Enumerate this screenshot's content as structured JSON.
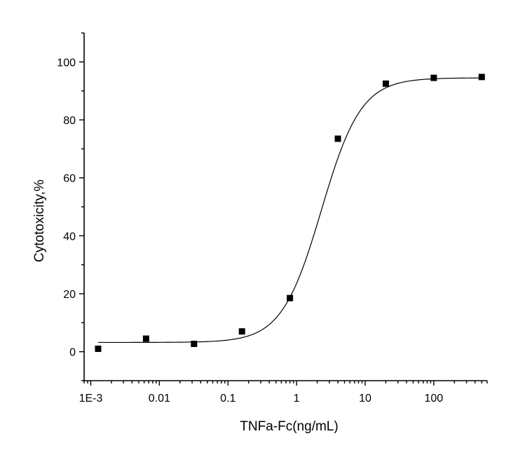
{
  "chart_data": {
    "type": "scatter",
    "xlabel": "TNFa-Fc(ng/mL)",
    "ylabel": "Cytotoxicity,%",
    "x_scale": "log",
    "xlim": [
      0.0008,
      600
    ],
    "ylim": [
      -10,
      110
    ],
    "x_ticks": [
      {
        "value": 0.001,
        "label": "1E-3"
      },
      {
        "value": 0.01,
        "label": "0.01"
      },
      {
        "value": 0.1,
        "label": "0.1"
      },
      {
        "value": 1,
        "label": "1"
      },
      {
        "value": 10,
        "label": "10"
      },
      {
        "value": 100,
        "label": "100"
      }
    ],
    "y_ticks": [
      {
        "value": 0,
        "label": "0"
      },
      {
        "value": 20,
        "label": "20"
      },
      {
        "value": 40,
        "label": "40"
      },
      {
        "value": 60,
        "label": "60"
      },
      {
        "value": 80,
        "label": "80"
      },
      {
        "value": 100,
        "label": "100"
      }
    ],
    "series": [
      {
        "x": [
          0.00128,
          0.0064,
          0.032,
          0.16,
          0.8,
          4,
          20,
          100,
          500
        ],
        "y": [
          1.0,
          4.5,
          2.7,
          7.0,
          18.5,
          73.5,
          92.5,
          94.5,
          94.8
        ]
      }
    ],
    "fit_curve": {
      "type": "sigmoid",
      "bottom": 3.2,
      "top": 94.5,
      "ec50": 2.3,
      "hill": 1.5
    },
    "grid": false
  }
}
